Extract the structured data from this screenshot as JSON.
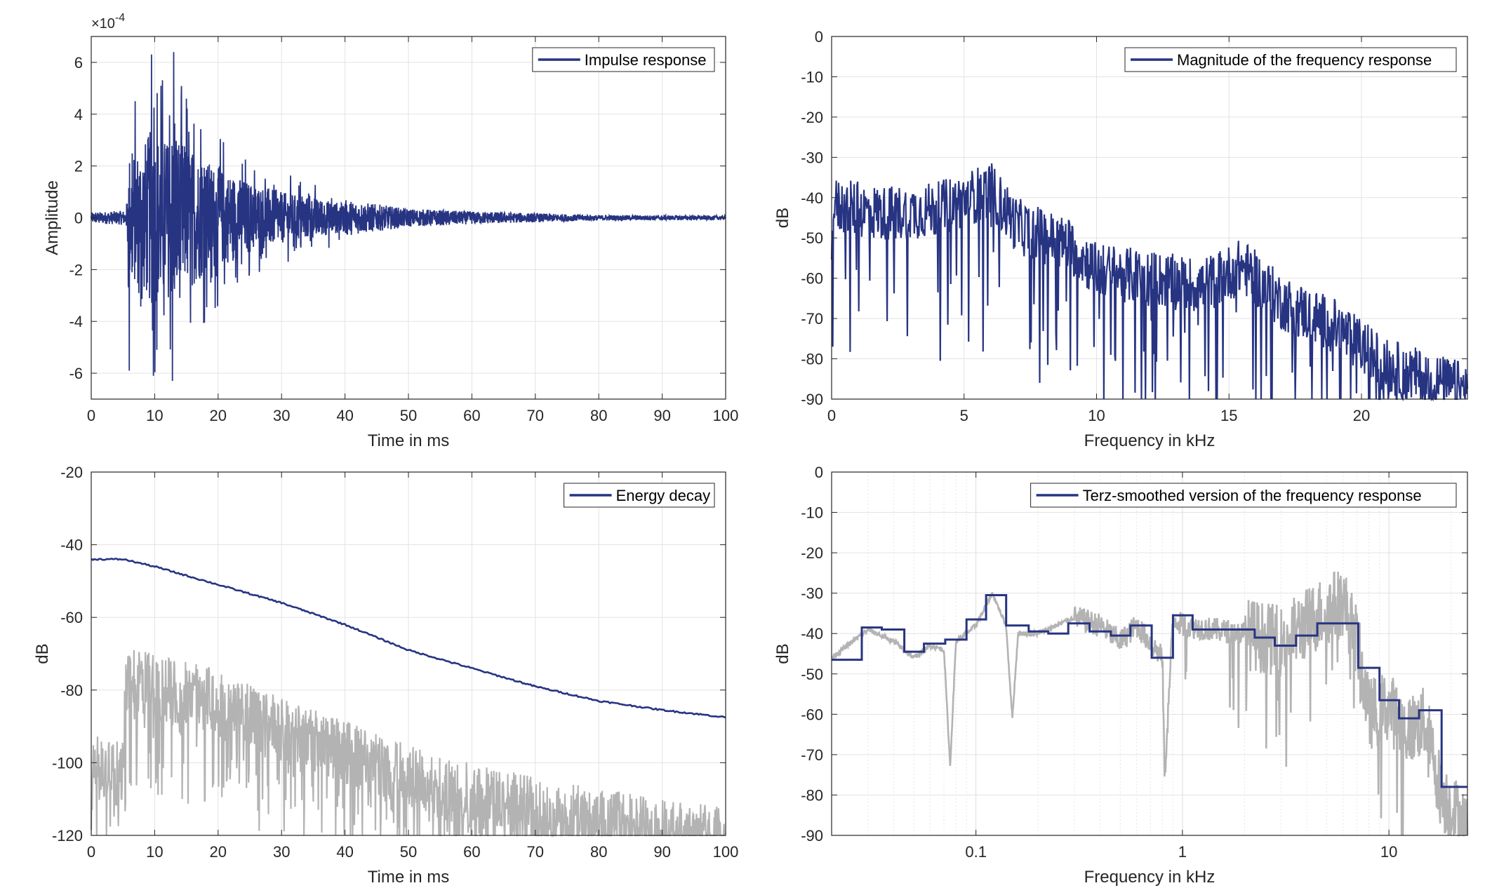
{
  "colors": {
    "series": "#273482",
    "raw": "#b3b3b3",
    "grid": "#e3e3e3",
    "axis": "#262626"
  },
  "chart_data": [
    {
      "type": "line",
      "id": "impulse",
      "legend": "Impulse response",
      "legend_placement": "top-right",
      "xlabel": "Time in ms",
      "ylabel": "Amplitude",
      "y_exponent_label": "×10",
      "y_exponent": "-4",
      "xlim": [
        0,
        100
      ],
      "ylim": [
        -7,
        7
      ],
      "xticks": [
        "0",
        "10",
        "20",
        "30",
        "40",
        "50",
        "60",
        "70",
        "80",
        "90",
        "100"
      ],
      "yticks": [
        "-6",
        "-4",
        "-2",
        "0",
        "2",
        "4",
        "6"
      ],
      "grid": true,
      "series": [
        {
          "envelope_keypoints": [
            [
              0,
              0.3
            ],
            [
              5.5,
              0.4
            ],
            [
              6,
              4.5
            ],
            [
              8,
              5
            ],
            [
              9.5,
              6.3
            ],
            [
              12,
              5.5
            ],
            [
              13,
              6.4
            ],
            [
              15,
              5
            ],
            [
              20,
              3.5
            ],
            [
              25,
              2.5
            ],
            [
              30,
              1.8
            ],
            [
              40,
              1
            ],
            [
              50,
              0.5
            ],
            [
              60,
              0.35
            ],
            [
              70,
              0.25
            ],
            [
              80,
              0.15
            ],
            [
              100,
              0.12
            ]
          ],
          "peaks": [
            [
              6,
              -5.9
            ],
            [
              9.5,
              6.3
            ],
            [
              9.8,
              -6.1
            ],
            [
              13,
              6.4
            ],
            [
              12.8,
              -6.3
            ],
            [
              11,
              5.1
            ],
            [
              15,
              4.6
            ]
          ]
        }
      ]
    },
    {
      "type": "line",
      "id": "magnitude",
      "legend": "Magnitude of the frequency response",
      "legend_placement": "top-right",
      "xlabel": "Frequency in kHz",
      "ylabel": "dB",
      "xlim": [
        0,
        24
      ],
      "ylim": [
        -90,
        0
      ],
      "xticks": [
        "0",
        "5",
        "10",
        "15",
        "20"
      ],
      "yticks": [
        "0",
        "-10",
        "-20",
        "-30",
        "-40",
        "-50",
        "-60",
        "-70",
        "-80",
        "-90"
      ],
      "grid": true,
      "series": [
        {
          "trend_keypoints": [
            [
              0,
              -42
            ],
            [
              2,
              -44
            ],
            [
              4,
              -43
            ],
            [
              6,
              -38
            ],
            [
              7,
              -47
            ],
            [
              9,
              -52
            ],
            [
              10,
              -58
            ],
            [
              12,
              -60
            ],
            [
              14,
              -62
            ],
            [
              15.5,
              -57
            ],
            [
              17,
              -66
            ],
            [
              19,
              -72
            ],
            [
              21,
              -82
            ],
            [
              22,
              -84
            ],
            [
              24,
              -88
            ]
          ]
        }
      ]
    },
    {
      "type": "line",
      "id": "energy",
      "legend": "Energy decay",
      "legend_placement": "top-right",
      "xlabel": "Time in ms",
      "ylabel": "dB",
      "xlim": [
        0,
        100
      ],
      "ylim": [
        -120,
        -20
      ],
      "xticks": [
        "0",
        "10",
        "20",
        "30",
        "40",
        "50",
        "60",
        "70",
        "80",
        "90",
        "100"
      ],
      "yticks": [
        "-20",
        "-40",
        "-60",
        "-80",
        "-100",
        "-120"
      ],
      "grid": true,
      "series": [
        {
          "decay": [
            [
              0,
              -44
            ],
            [
              5,
              -44
            ],
            [
              10,
              -46
            ],
            [
              20,
              -51
            ],
            [
              30,
              -56
            ],
            [
              40,
              -62
            ],
            [
              50,
              -69
            ],
            [
              60,
              -74
            ],
            [
              70,
              -79
            ],
            [
              80,
              -83
            ],
            [
              90,
              -85.5
            ],
            [
              100,
              -87.5
            ]
          ]
        },
        {
          "raw_envelope": [
            [
              0,
              -92
            ],
            [
              5,
              -94
            ],
            [
              5.5,
              -68
            ],
            [
              10,
              -70
            ],
            [
              20,
              -74
            ],
            [
              30,
              -82
            ],
            [
              40,
              -88
            ],
            [
              50,
              -95
            ],
            [
              60,
              -100
            ],
            [
              70,
              -104
            ],
            [
              80,
              -107
            ],
            [
              90,
              -110
            ],
            [
              100,
              -112
            ]
          ]
        }
      ]
    },
    {
      "type": "line",
      "id": "terz",
      "legend": "Terz-smoothed version of the frequency response",
      "legend_placement": "top-right",
      "xlabel": "Frequency in kHz",
      "ylabel": "dB",
      "xscale": "log",
      "xlim": [
        0.02,
        24
      ],
      "ylim": [
        -90,
        0
      ],
      "xticks": [
        "0.1",
        "1",
        "10"
      ],
      "yticks": [
        "0",
        "-10",
        "-20",
        "-30",
        "-40",
        "-50",
        "-60",
        "-70",
        "-80",
        "-90"
      ],
      "grid": true,
      "series": [
        {
          "terz_steps": [
            [
              0.02,
              -46.5
            ],
            [
              0.028,
              -38.5
            ],
            [
              0.035,
              -39
            ],
            [
              0.045,
              -44.5
            ],
            [
              0.056,
              -42.5
            ],
            [
              0.071,
              -41.5
            ],
            [
              0.09,
              -36.5
            ],
            [
              0.112,
              -30.5
            ],
            [
              0.14,
              -38
            ],
            [
              0.18,
              -39.5
            ],
            [
              0.224,
              -40
            ],
            [
              0.28,
              -37.5
            ],
            [
              0.355,
              -39.5
            ],
            [
              0.45,
              -40.5
            ],
            [
              0.56,
              -38
            ],
            [
              0.71,
              -46
            ],
            [
              0.9,
              -35.5
            ],
            [
              1.12,
              -39
            ],
            [
              1.4,
              -39
            ],
            [
              1.8,
              -39
            ],
            [
              2.24,
              -41
            ],
            [
              2.8,
              -43
            ],
            [
              3.55,
              -40.5
            ],
            [
              4.5,
              -37.5
            ],
            [
              5.6,
              -37.5
            ],
            [
              7.1,
              -48.5
            ],
            [
              9,
              -56.5
            ],
            [
              11.2,
              -61
            ],
            [
              14,
              -59
            ],
            [
              18,
              -78
            ],
            [
              24,
              -78
            ]
          ]
        },
        {
          "raw_keypoints": [
            [
              0.02,
              -46
            ],
            [
              0.03,
              -39
            ],
            [
              0.04,
              -42
            ],
            [
              0.05,
              -46
            ],
            [
              0.06,
              -43
            ],
            [
              0.07,
              -44
            ],
            [
              0.075,
              -73
            ],
            [
              0.08,
              -42
            ],
            [
              0.1,
              -38
            ],
            [
              0.12,
              -30
            ],
            [
              0.14,
              -38
            ],
            [
              0.15,
              -61
            ],
            [
              0.16,
              -40
            ],
            [
              0.2,
              -40
            ],
            [
              0.3,
              -36
            ],
            [
              0.4,
              -38
            ],
            [
              0.5,
              -42
            ],
            [
              0.6,
              -38
            ],
            [
              0.8,
              -46
            ],
            [
              0.82,
              -76
            ],
            [
              0.9,
              -36
            ],
            [
              1,
              -38
            ],
            [
              2,
              -40
            ],
            [
              3,
              -42
            ],
            [
              5,
              -34
            ],
            [
              6,
              -32
            ],
            [
              7,
              -42
            ],
            [
              8,
              -60
            ],
            [
              10,
              -58
            ],
            [
              12,
              -64
            ],
            [
              15,
              -62
            ],
            [
              18,
              -80
            ],
            [
              24,
              -88
            ]
          ]
        }
      ]
    }
  ]
}
